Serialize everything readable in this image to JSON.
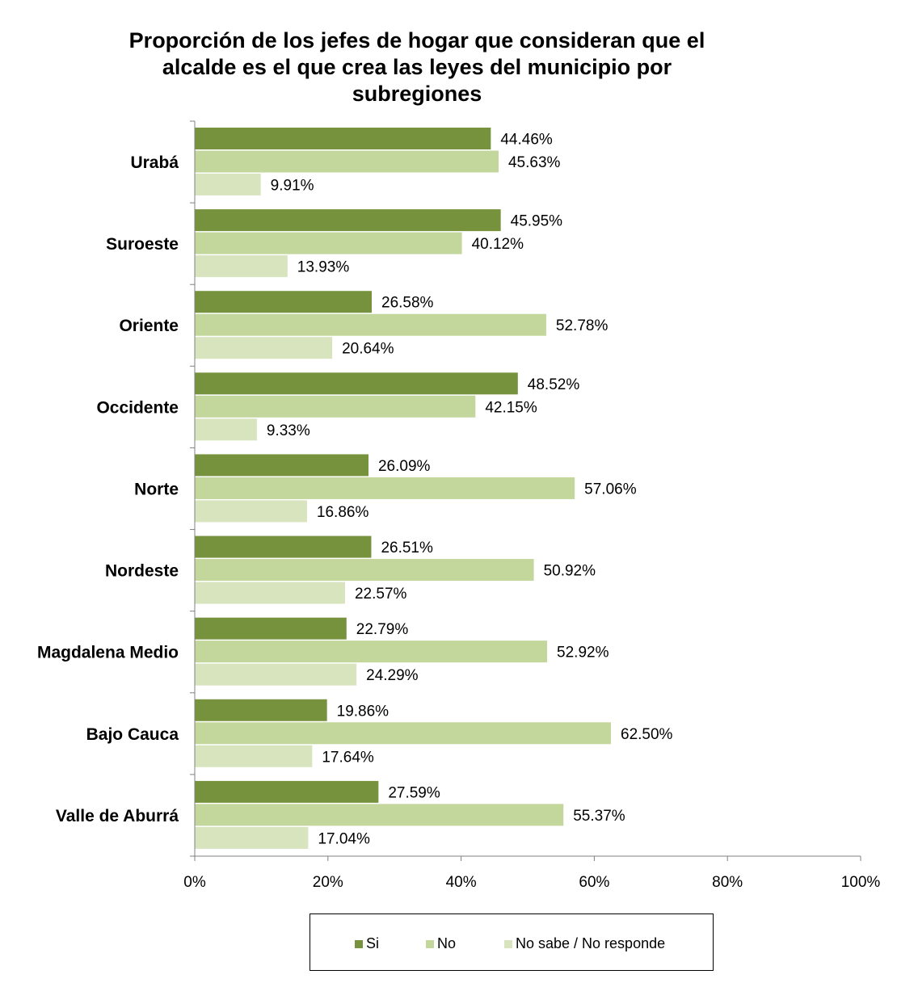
{
  "chart_data": {
    "type": "bar",
    "orientation": "horizontal",
    "title_lines": [
      "Proporción de los jefes de hogar que  consideran  que el",
      "alcalde es el que crea las leyes del municipio   por",
      "subregiones"
    ],
    "categories": [
      "Urabá",
      "Suroeste",
      "Oriente",
      "Occidente",
      "Norte",
      "Nordeste",
      "Magdalena Medio",
      "Bajo Cauca",
      "Valle de Aburrá"
    ],
    "series": [
      {
        "name": "Si",
        "color": "#76923c",
        "values": [
          44.46,
          45.95,
          26.58,
          48.52,
          26.09,
          26.51,
          22.79,
          19.86,
          27.59
        ],
        "labels": [
          "44.46%",
          "45.95%",
          "26.58%",
          "48.52%",
          "26.09%",
          "26.51%",
          "22.79%",
          "19.86%",
          "27.59%"
        ]
      },
      {
        "name": "No",
        "color": "#c3d69b",
        "values": [
          45.63,
          40.12,
          52.78,
          42.15,
          57.06,
          50.92,
          52.92,
          62.5,
          55.37
        ],
        "labels": [
          "45.63%",
          "40.12%",
          "52.78%",
          "42.15%",
          "57.06%",
          "50.92%",
          "52.92%",
          "62.50%",
          "55.37%"
        ]
      },
      {
        "name": "No sabe / No responde",
        "color": "#d7e4bd",
        "values": [
          9.91,
          13.93,
          20.64,
          9.33,
          16.86,
          22.57,
          24.29,
          17.64,
          17.04
        ],
        "labels": [
          "9.91%",
          "13.93%",
          "20.64%",
          "9.33%",
          "16.86%",
          "22.57%",
          "24.29%",
          "17.64%",
          "17.04%"
        ]
      }
    ],
    "xlim": [
      0,
      100
    ],
    "xticks": [
      0,
      20,
      40,
      60,
      80,
      100
    ],
    "xtick_labels": [
      "0%",
      "20%",
      "40%",
      "60%",
      "80%",
      "100%"
    ],
    "grid": false,
    "legend_position": "bottom"
  }
}
